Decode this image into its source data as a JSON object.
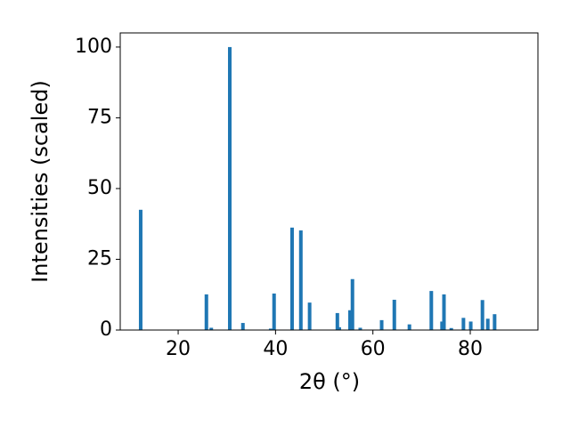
{
  "chart_data": {
    "type": "bar",
    "x": [
      12.3,
      25.8,
      26.8,
      30.6,
      33.3,
      39.0,
      39.7,
      43.4,
      45.2,
      47.0,
      52.7,
      53.1,
      55.3,
      55.8,
      57.4,
      61.8,
      64.4,
      67.5,
      72.0,
      74.2,
      74.6,
      76.1,
      78.6,
      80.1,
      82.5,
      83.6,
      85.0
    ],
    "values": [
      42.5,
      12.6,
      0.8,
      100,
      2.5,
      0.5,
      12.9,
      36.2,
      35.2,
      9.7,
      6.0,
      1.0,
      7.0,
      18.0,
      0.8,
      3.5,
      10.7,
      2.0,
      13.8,
      3.0,
      12.6,
      0.7,
      4.3,
      3.0,
      10.6,
      4.0,
      5.6
    ],
    "color": "#1f77b4",
    "xlabel": "2θ (°)",
    "ylabel": "Intensities (scaled)",
    "xlim": [
      8.1,
      93.9
    ],
    "xticks": [
      20,
      40,
      60,
      80
    ],
    "ylim": [
      0,
      105
    ],
    "yticks": [
      0,
      25,
      50,
      75,
      100
    ]
  }
}
